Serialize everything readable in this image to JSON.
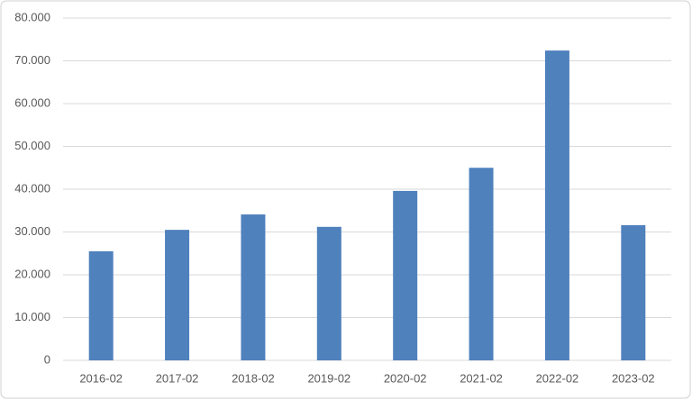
{
  "chart_data": {
    "type": "bar",
    "categories": [
      "2016-02",
      "2017-02",
      "2018-02",
      "2019-02",
      "2020-02",
      "2021-02",
      "2022-02",
      "2023-02"
    ],
    "values": [
      25500,
      30500,
      34100,
      31200,
      39600,
      45000,
      72400,
      31600
    ],
    "color": "#4f81bd",
    "ylim": [
      0,
      80000
    ],
    "yticks": [
      0,
      {
        "value": 10000,
        "label": "10.000"
      },
      {
        "value": 20000,
        "label": "20.000"
      },
      {
        "value": 30000,
        "label": "30.000"
      },
      {
        "value": 40000,
        "label": "40.000"
      },
      {
        "value": 50000,
        "label": "50.000"
      },
      {
        "value": 60000,
        "label": "60.000"
      },
      {
        "value": 70000,
        "label": "70.000"
      },
      {
        "value": 80000,
        "label": "80.000"
      }
    ],
    "grid": true
  }
}
